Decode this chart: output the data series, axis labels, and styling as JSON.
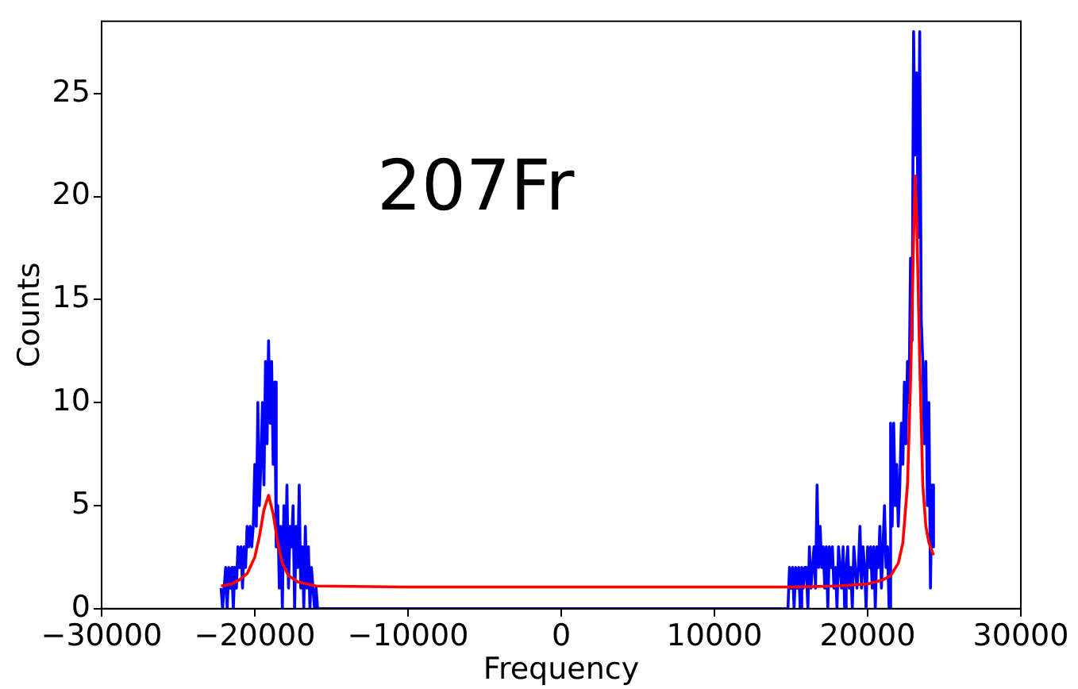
{
  "chart_data": {
    "type": "line",
    "xlabel": "Frequency",
    "ylabel": "Counts",
    "annotations": [
      "207Fr"
    ],
    "xlim": [
      -30000,
      30000
    ],
    "xticks": [
      -30000,
      -20000,
      -10000,
      0,
      10000,
      20000,
      30000
    ],
    "ylim": [
      0,
      28.5
    ],
    "yticks": [
      0,
      5,
      10,
      15,
      20,
      25
    ],
    "grid": false,
    "legend": false,
    "marker": "none",
    "line_style": "solid",
    "series": [
      {
        "color": "#0000ff",
        "x": [
          -22200,
          -22100,
          -22000,
          -21900,
          -21800,
          -21700,
          -21600,
          -21500,
          -21400,
          -21300,
          -21200,
          -21100,
          -21000,
          -20900,
          -20800,
          -20700,
          -20600,
          -20500,
          -20400,
          -20300,
          -20200,
          -20100,
          -20000,
          -19900,
          -19800,
          -19700,
          -19600,
          -19500,
          -19400,
          -19300,
          -19200,
          -19100,
          -19000,
          -18900,
          -18800,
          -18700,
          -18600,
          -18500,
          -18400,
          -18300,
          -18200,
          -18100,
          -18000,
          -17900,
          -17800,
          -17700,
          -17600,
          -17500,
          -17400,
          -17300,
          -17200,
          -17100,
          -17000,
          -16900,
          -16800,
          -16700,
          -16600,
          -16500,
          -16400,
          -16300,
          -16200,
          -16100,
          -16000,
          -15900,
          14800,
          14900,
          15000,
          15100,
          15200,
          15300,
          15400,
          15500,
          15600,
          15700,
          15800,
          15900,
          16000,
          16100,
          16200,
          16300,
          16400,
          16500,
          16600,
          16700,
          16800,
          16900,
          17000,
          17100,
          17200,
          17300,
          17400,
          17500,
          17600,
          17700,
          17800,
          17900,
          18000,
          18100,
          18200,
          18300,
          18400,
          18500,
          18600,
          18700,
          18800,
          18900,
          19000,
          19100,
          19200,
          19300,
          19400,
          19500,
          19600,
          19700,
          19800,
          19900,
          20000,
          20100,
          20200,
          20300,
          20400,
          20500,
          20600,
          20700,
          20800,
          20900,
          21000,
          21100,
          21200,
          21300,
          21400,
          21500,
          21600,
          21700,
          21800,
          21900,
          22000,
          22100,
          22200,
          22300,
          22400,
          22500,
          22600,
          22700,
          22800,
          22900,
          23000,
          23100,
          23200,
          23300,
          23400,
          23500,
          23600,
          23700,
          23800,
          23900,
          24000,
          24100,
          24200,
          24300
        ],
        "values": [
          1,
          0,
          1,
          2,
          0,
          2,
          1,
          2,
          0,
          2,
          1,
          3,
          2,
          3,
          1,
          3,
          2,
          4,
          3,
          4,
          3,
          4,
          7,
          4,
          10,
          5,
          7,
          10,
          6,
          12,
          8,
          13,
          9,
          12,
          7,
          11,
          3,
          5,
          1,
          4,
          0,
          5,
          2,
          6,
          1,
          4,
          3,
          5,
          0,
          4,
          2,
          6,
          1,
          3,
          0,
          4,
          1,
          3,
          0,
          2,
          1,
          0,
          1,
          0,
          0,
          2,
          1,
          2,
          0,
          2,
          1,
          2,
          0,
          2,
          1,
          2,
          2,
          0,
          3,
          1,
          2,
          3,
          1,
          6,
          2,
          4,
          2,
          3,
          1,
          3,
          0,
          3,
          2,
          3,
          1,
          2,
          0,
          3,
          2,
          1,
          3,
          0,
          2,
          3,
          1,
          2,
          0,
          3,
          2,
          1,
          2,
          4,
          1,
          3,
          2,
          0,
          3,
          2,
          3,
          1,
          3,
          0,
          3,
          2,
          4,
          1,
          3,
          5,
          2,
          3,
          0,
          9,
          4,
          9,
          5,
          7,
          4,
          6,
          9,
          7,
          11,
          8,
          12,
          10,
          17,
          13,
          28,
          22,
          26,
          18,
          28,
          14,
          12,
          8,
          12,
          5,
          10,
          1,
          6,
          3
        ]
      },
      {
        "color": "#ff0000",
        "x": [
          -22200,
          -21500,
          -21000,
          -20500,
          -20000,
          -19700,
          -19400,
          -19100,
          -18800,
          -18500,
          -18200,
          -17800,
          -17200,
          -16000,
          -10000,
          0,
          10000,
          15000,
          18000,
          20000,
          21000,
          21500,
          22000,
          22300,
          22600,
          22800,
          23000,
          23100,
          23200,
          23400,
          23600,
          23800,
          24000,
          24300
        ],
        "values": [
          1.1,
          1.2,
          1.4,
          1.7,
          2.5,
          3.5,
          4.8,
          5.5,
          4.6,
          3.2,
          2.2,
          1.6,
          1.3,
          1.1,
          1.05,
          1.05,
          1.05,
          1.05,
          1.1,
          1.2,
          1.4,
          1.6,
          2.2,
          3.2,
          6,
          11,
          18,
          21,
          19,
          12,
          6,
          4,
          3.2,
          2.6
        ]
      }
    ]
  }
}
